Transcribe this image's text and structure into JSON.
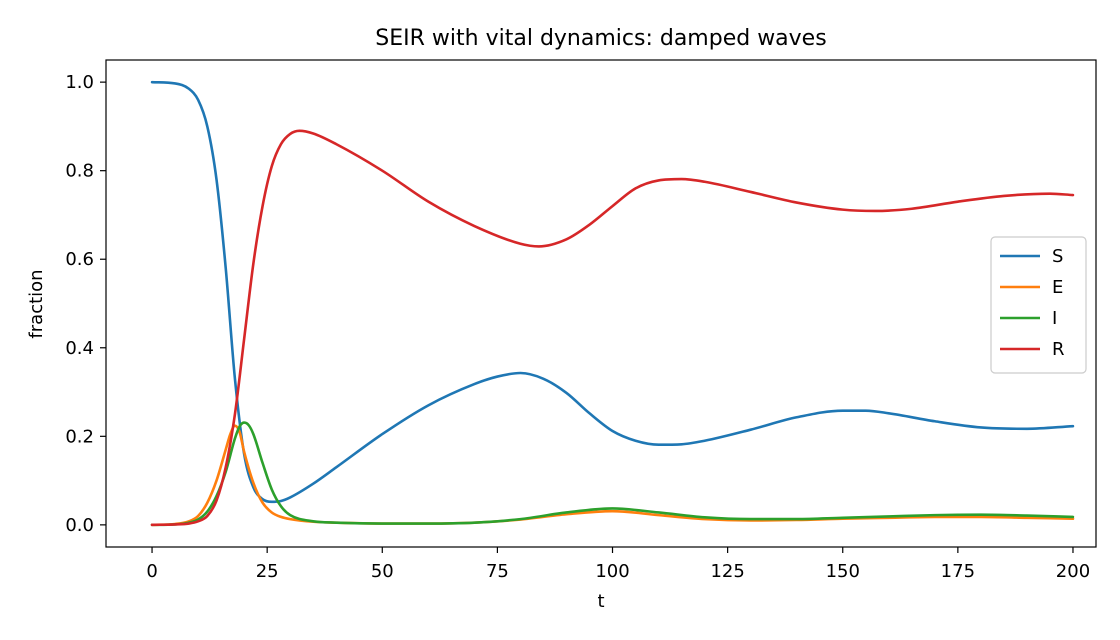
{
  "chart_data": {
    "type": "line",
    "title": "SEIR with vital dynamics: damped waves",
    "xlabel": "t",
    "ylabel": "fraction",
    "xlim": [
      -10,
      205
    ],
    "ylim": [
      -0.05,
      1.05
    ],
    "xticks": [
      0,
      25,
      50,
      75,
      100,
      125,
      150,
      175,
      200
    ],
    "yticks": [
      0.0,
      0.2,
      0.4,
      0.6,
      0.8,
      1.0
    ],
    "ytick_labels": [
      "0.0",
      "0.2",
      "0.4",
      "0.6",
      "0.8",
      "1.0"
    ],
    "grid": false,
    "legend_position": "center-right",
    "series": [
      {
        "name": "S",
        "color": "#1f77b4",
        "x": [
          0,
          5,
          8,
          10,
          12,
          14,
          16,
          18,
          20,
          22,
          24,
          26,
          28,
          30,
          35,
          40,
          50,
          60,
          70,
          75,
          80,
          85,
          90,
          95,
          100,
          105,
          110,
          115,
          120,
          130,
          140,
          150,
          155,
          160,
          170,
          180,
          190,
          200
        ],
        "values": [
          1.0,
          0.997,
          0.985,
          0.96,
          0.9,
          0.78,
          0.58,
          0.33,
          0.16,
          0.085,
          0.058,
          0.052,
          0.054,
          0.062,
          0.093,
          0.13,
          0.205,
          0.27,
          0.318,
          0.335,
          0.343,
          0.33,
          0.298,
          0.252,
          0.212,
          0.19,
          0.181,
          0.182,
          0.19,
          0.215,
          0.243,
          0.258,
          0.258,
          0.252,
          0.234,
          0.22,
          0.217,
          0.223
        ]
      },
      {
        "name": "E",
        "color": "#ff7f0e",
        "x": [
          0,
          5,
          8,
          10,
          12,
          14,
          16,
          17,
          18,
          19,
          20,
          22,
          24,
          26,
          28,
          30,
          35,
          40,
          50,
          60,
          70,
          80,
          90,
          100,
          110,
          120,
          130,
          140,
          150,
          160,
          170,
          180,
          190,
          200
        ],
        "values": [
          0.0,
          0.002,
          0.008,
          0.02,
          0.05,
          0.1,
          0.17,
          0.205,
          0.224,
          0.21,
          0.165,
          0.095,
          0.05,
          0.028,
          0.018,
          0.013,
          0.007,
          0.005,
          0.003,
          0.003,
          0.005,
          0.012,
          0.024,
          0.031,
          0.022,
          0.013,
          0.01,
          0.011,
          0.014,
          0.016,
          0.018,
          0.018,
          0.016,
          0.014
        ]
      },
      {
        "name": "I",
        "color": "#2ca02c",
        "x": [
          0,
          5,
          8,
          10,
          12,
          14,
          16,
          18,
          19,
          20,
          21,
          22,
          24,
          26,
          28,
          30,
          35,
          40,
          50,
          60,
          70,
          80,
          90,
          100,
          110,
          120,
          130,
          140,
          150,
          160,
          170,
          180,
          190,
          200
        ],
        "values": [
          0.0,
          0.001,
          0.005,
          0.012,
          0.03,
          0.065,
          0.12,
          0.195,
          0.222,
          0.231,
          0.225,
          0.205,
          0.14,
          0.08,
          0.042,
          0.022,
          0.008,
          0.005,
          0.003,
          0.003,
          0.005,
          0.013,
          0.028,
          0.037,
          0.028,
          0.017,
          0.013,
          0.013,
          0.016,
          0.019,
          0.022,
          0.023,
          0.021,
          0.018
        ]
      },
      {
        "name": "R",
        "color": "#d62728",
        "x": [
          0,
          5,
          8,
          10,
          12,
          14,
          16,
          18,
          20,
          22,
          24,
          26,
          28,
          30,
          32,
          35,
          40,
          50,
          60,
          70,
          80,
          84,
          90,
          95,
          100,
          105,
          110,
          115,
          120,
          130,
          140,
          150,
          157,
          165,
          175,
          185,
          195,
          200
        ],
        "values": [
          0.0,
          0.001,
          0.003,
          0.008,
          0.02,
          0.055,
          0.13,
          0.25,
          0.42,
          0.59,
          0.72,
          0.81,
          0.86,
          0.883,
          0.89,
          0.884,
          0.86,
          0.8,
          0.73,
          0.675,
          0.635,
          0.629,
          0.645,
          0.678,
          0.72,
          0.76,
          0.778,
          0.781,
          0.775,
          0.752,
          0.728,
          0.712,
          0.709,
          0.714,
          0.73,
          0.743,
          0.748,
          0.745
        ]
      }
    ]
  }
}
